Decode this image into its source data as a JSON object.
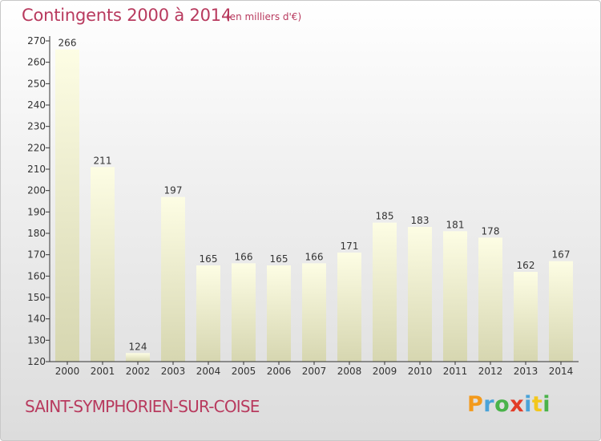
{
  "header": {
    "title": "Contingents 2000 à 2014",
    "subtitle": "(en milliers d'€)"
  },
  "footer": {
    "commune": "SAINT-SYMPHORIEN-SUR-COISE",
    "logo": "Proxiti"
  },
  "colors": {
    "title": "#b83a5e",
    "bar_top": "#fdfde4",
    "bar_bottom": "#d6d6b0",
    "axis": "#333333"
  },
  "chart_data": {
    "type": "bar",
    "categories": [
      "2000",
      "2001",
      "2002",
      "2003",
      "2004",
      "2005",
      "2006",
      "2007",
      "2008",
      "2009",
      "2010",
      "2011",
      "2012",
      "2013",
      "2014"
    ],
    "values": [
      266,
      211,
      124,
      197,
      165,
      166,
      165,
      166,
      171,
      185,
      183,
      181,
      178,
      162,
      167
    ],
    "title": "Contingents 2000 à 2014",
    "ylim": [
      120,
      270
    ],
    "yticks": [
      120,
      130,
      140,
      150,
      160,
      170,
      180,
      190,
      200,
      210,
      220,
      230,
      240,
      250,
      260,
      270
    ],
    "grid": false,
    "legend": "none"
  }
}
